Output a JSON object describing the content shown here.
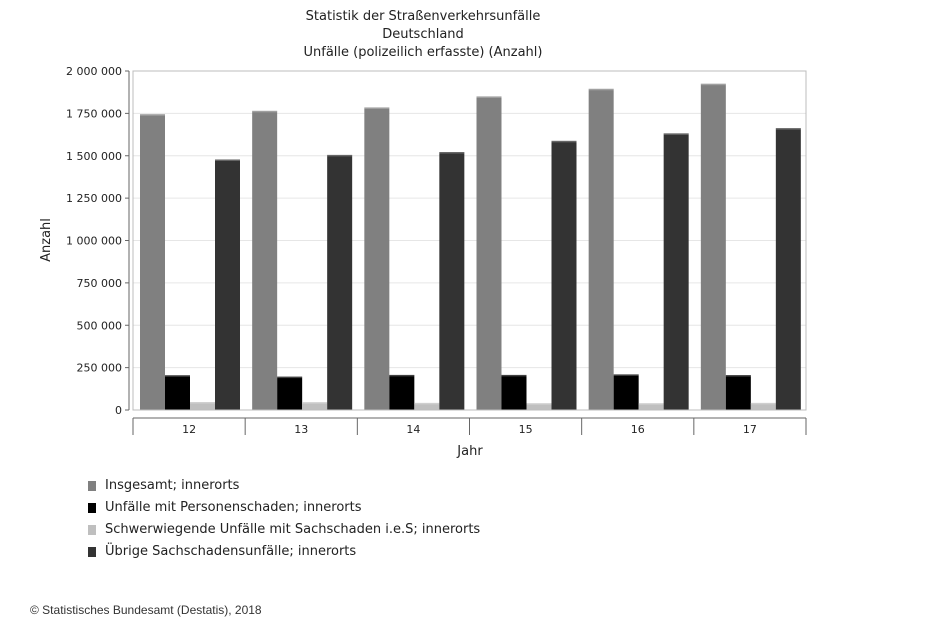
{
  "chart_data": {
    "type": "bar",
    "title_lines": [
      "Statistik der Straßenverkehrsunfälle",
      "Deutschland",
      "Unfälle (polizeilich erfasste) (Anzahl)"
    ],
    "xlabel": "Jahr",
    "ylabel": "Anzahl",
    "categories": [
      "12",
      "13",
      "14",
      "15",
      "16",
      "17"
    ],
    "ylim": [
      0,
      2000000
    ],
    "yticks": [
      0,
      250000,
      500000,
      750000,
      1000000,
      1250000,
      1500000,
      1750000,
      2000000
    ],
    "ytick_labels": [
      "0",
      "250 000",
      "500 000",
      "750 000",
      "1 000 000",
      "1 250 000",
      "1 500 000",
      "1 750 000",
      "2 000 000"
    ],
    "grid": true,
    "legend_position": "bottom-left",
    "series": [
      {
        "name": "Insgesamt; innerorts",
        "color": "#808080",
        "values": [
          1745000,
          1765000,
          1785000,
          1850000,
          1895000,
          1925000
        ]
      },
      {
        "name": "Unfälle mit Personenschaden; innerorts",
        "color": "#000000",
        "values": [
          205000,
          197000,
          207000,
          207000,
          210000,
          206000
        ]
      },
      {
        "name": "Schwerwiegende Unfälle mit Sachschaden i.e.S; innerorts",
        "color": "#bfbfbf",
        "values": [
          47000,
          46000,
          42000,
          40000,
          40000,
          42000
        ]
      },
      {
        "name": "Übrige Sachschadensunfälle; innerorts",
        "color": "#333333",
        "values": [
          1478000,
          1505000,
          1522000,
          1588000,
          1632000,
          1663000
        ]
      }
    ]
  },
  "footer": {
    "copyright": "© Statistisches Bundesamt (Destatis), 2018"
  }
}
